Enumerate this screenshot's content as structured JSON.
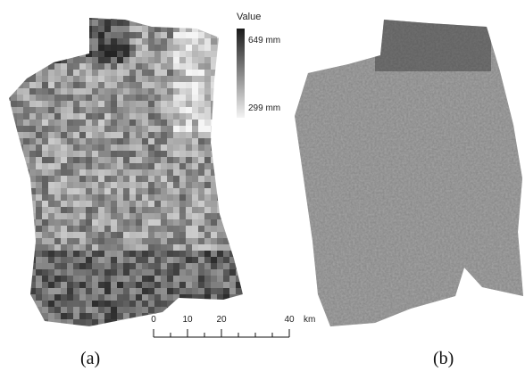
{
  "legend": {
    "title": "Value",
    "high": "649 mm",
    "low": "299 mm"
  },
  "scale_bar": {
    "ticks": [
      0,
      10,
      20,
      40
    ],
    "unit": "km"
  },
  "panels": {
    "a": "(a)",
    "b": "(b)"
  }
}
